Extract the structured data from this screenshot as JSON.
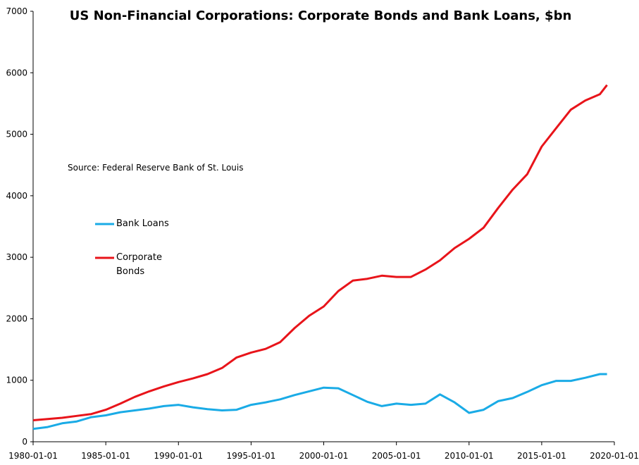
{
  "chart_data": {
    "type": "line",
    "title": "US Non-Financial Corporations: Corporate Bonds and Bank Loans, $bn",
    "annotation": "Source: Federal Reserve Bank of St. Louis",
    "x": [
      "1980-01-01",
      "1981-01-01",
      "1982-01-01",
      "1983-01-01",
      "1984-01-01",
      "1985-01-01",
      "1986-01-01",
      "1987-01-01",
      "1988-01-01",
      "1989-01-01",
      "1990-01-01",
      "1991-01-01",
      "1992-01-01",
      "1993-01-01",
      "1994-01-01",
      "1995-01-01",
      "1996-01-01",
      "1997-01-01",
      "1998-01-01",
      "1999-01-01",
      "2000-01-01",
      "2001-01-01",
      "2002-01-01",
      "2003-01-01",
      "2004-01-01",
      "2005-01-01",
      "2006-01-01",
      "2007-01-01",
      "2008-01-01",
      "2009-01-01",
      "2010-01-01",
      "2011-01-01",
      "2012-01-01",
      "2013-01-01",
      "2014-01-01",
      "2015-01-01",
      "2016-01-01",
      "2017-01-01",
      "2018-01-01",
      "2019-01-01",
      "2019-07-01"
    ],
    "series": [
      {
        "name": "Bank Loans",
        "color": "#1aabe6",
        "values": [
          210,
          240,
          300,
          330,
          400,
          430,
          480,
          510,
          540,
          580,
          600,
          560,
          530,
          510,
          520,
          600,
          640,
          690,
          760,
          820,
          880,
          870,
          760,
          650,
          580,
          620,
          600,
          620,
          770,
          640,
          470,
          520,
          660,
          710,
          810,
          920,
          990,
          990,
          1040,
          1100,
          1100
        ]
      },
      {
        "name": "Corporate Bonds",
        "color": "#e8141a",
        "values": [
          350,
          370,
          390,
          420,
          450,
          520,
          620,
          730,
          820,
          900,
          970,
          1030,
          1100,
          1200,
          1370,
          1450,
          1510,
          1620,
          1850,
          2050,
          2200,
          2450,
          2620,
          2650,
          2700,
          2680,
          2680,
          2800,
          2950,
          3150,
          3300,
          3480,
          3800,
          4100,
          4350,
          4800,
          5100,
          5400,
          5550,
          5650,
          5800
        ]
      }
    ],
    "xlim": [
      "1980-01-01",
      "2020-01-01"
    ],
    "xticks": [
      "1980-01-01",
      "1985-01-01",
      "1990-01-01",
      "1995-01-01",
      "2000-01-01",
      "2005-01-01",
      "2010-01-01",
      "2015-01-01",
      "2020-01-01"
    ],
    "ylim": [
      0,
      7000
    ],
    "yticks": [
      0,
      1000,
      2000,
      3000,
      4000,
      5000,
      6000,
      7000
    ]
  }
}
